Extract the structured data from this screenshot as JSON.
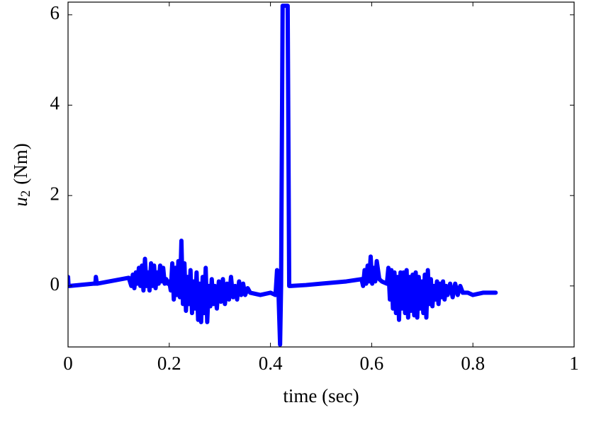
{
  "chart_data": {
    "type": "line",
    "xlabel": "time (sec)",
    "ylabel": {
      "symbol": "u",
      "subscript": "2",
      "unit": "(Nm)"
    },
    "color": "#0000ff",
    "xlim": [
      0,
      1
    ],
    "xticks": [
      0,
      0.2,
      0.4,
      0.6,
      0.8,
      1
    ],
    "ylim": [
      -1.35,
      6.28
    ],
    "yticks": [
      0,
      2,
      4,
      6
    ],
    "grid": false,
    "x": [
      0,
      0.001,
      0.003,
      0.05,
      0.054,
      0.055,
      0.057,
      0.12,
      0.125,
      0.128,
      0.131,
      0.134,
      0.137,
      0.14,
      0.143,
      0.146,
      0.149,
      0.152,
      0.155,
      0.158,
      0.161,
      0.164,
      0.167,
      0.17,
      0.173,
      0.176,
      0.179,
      0.182,
      0.185,
      0.188,
      0.191,
      0.194,
      0.197,
      0.2,
      0.203,
      0.206,
      0.209,
      0.212,
      0.215,
      0.218,
      0.221,
      0.224,
      0.227,
      0.23,
      0.233,
      0.236,
      0.239,
      0.242,
      0.245,
      0.248,
      0.251,
      0.254,
      0.257,
      0.26,
      0.263,
      0.266,
      0.269,
      0.272,
      0.275,
      0.278,
      0.281,
      0.284,
      0.287,
      0.29,
      0.294,
      0.298,
      0.302,
      0.306,
      0.31,
      0.314,
      0.318,
      0.322,
      0.326,
      0.33,
      0.334,
      0.338,
      0.342,
      0.346,
      0.35,
      0.355,
      0.36,
      0.38,
      0.4,
      0.41,
      0.413,
      0.416,
      0.419,
      0.421,
      0.424,
      0.427,
      0.434,
      0.437,
      0.44,
      0.47,
      0.5,
      0.55,
      0.58,
      0.583,
      0.586,
      0.589,
      0.592,
      0.595,
      0.598,
      0.601,
      0.604,
      0.607,
      0.61,
      0.615,
      0.62,
      0.63,
      0.633,
      0.636,
      0.639,
      0.642,
      0.645,
      0.648,
      0.651,
      0.654,
      0.657,
      0.66,
      0.663,
      0.666,
      0.669,
      0.672,
      0.675,
      0.678,
      0.681,
      0.684,
      0.687,
      0.69,
      0.693,
      0.696,
      0.699,
      0.702,
      0.705,
      0.708,
      0.711,
      0.714,
      0.717,
      0.72,
      0.723,
      0.726,
      0.729,
      0.732,
      0.735,
      0.738,
      0.741,
      0.744,
      0.747,
      0.75,
      0.755,
      0.76,
      0.765,
      0.77,
      0.775,
      0.78,
      0.79,
      0.8,
      0.82,
      0.845
    ],
    "values": [
      0.2,
      0.0,
      0.0,
      0.05,
      0.05,
      0.2,
      0.05,
      0.18,
      0.0,
      0.25,
      -0.05,
      0.3,
      0.05,
      0.4,
      0.0,
      0.45,
      -0.1,
      0.6,
      0.0,
      0.3,
      -0.1,
      0.5,
      0.0,
      0.45,
      -0.05,
      0.3,
      0.05,
      0.45,
      0.1,
      0.4,
      0.05,
      0.15,
      0.05,
      0.1,
      -0.1,
      0.5,
      -0.3,
      0.4,
      -0.2,
      0.55,
      -0.25,
      1.0,
      -0.4,
      0.5,
      -0.55,
      0.2,
      -0.4,
      0.35,
      -0.6,
      0.1,
      -0.5,
      0.3,
      -0.75,
      0.05,
      -0.8,
      0.2,
      -0.6,
      0.4,
      -0.8,
      0.0,
      -0.45,
      0.15,
      -0.4,
      0.0,
      -0.5,
      0.1,
      -0.35,
      0.15,
      -0.4,
      0.05,
      -0.3,
      0.2,
      -0.25,
      0.0,
      -0.3,
      0.1,
      -0.2,
      0.05,
      -0.2,
      -0.05,
      -0.15,
      -0.2,
      -0.15,
      -0.2,
      0.35,
      -0.2,
      -1.3,
      0.0,
      6.2,
      6.2,
      6.2,
      0.0,
      0.0,
      0.02,
      0.05,
      0.1,
      0.15,
      0.0,
      0.35,
      0.05,
      0.45,
      0.1,
      0.65,
      0.05,
      0.4,
      0.1,
      0.55,
      0.15,
      0.1,
      0.05,
      0.4,
      -0.3,
      0.35,
      -0.5,
      0.3,
      -0.6,
      0.2,
      -0.75,
      0.3,
      -0.5,
      0.3,
      -0.6,
      0.35,
      -0.7,
      0.2,
      -0.55,
      0.25,
      -0.65,
      0.3,
      -0.7,
      0.2,
      -0.5,
      0.1,
      -0.6,
      0.25,
      -0.7,
      0.35,
      -0.4,
      0.15,
      -0.45,
      0.0,
      -0.3,
      0.1,
      -0.4,
      0.05,
      -0.25,
      0.1,
      -0.3,
      0.0,
      -0.2,
      0.05,
      -0.25,
      0.05,
      -0.2,
      0.0,
      -0.15,
      -0.15,
      -0.2,
      -0.15,
      -0.15
    ]
  }
}
